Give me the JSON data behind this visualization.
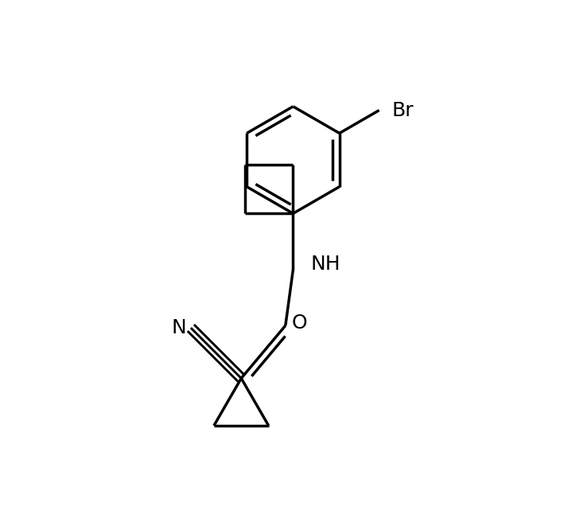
{
  "background_color": "#ffffff",
  "line_color": "#000000",
  "line_width": 2.5,
  "font_size": 18,
  "figsize": [
    7.09,
    6.46
  ],
  "dpi": 100,
  "xlim": [
    0,
    10
  ],
  "ylim": [
    0,
    10
  ]
}
